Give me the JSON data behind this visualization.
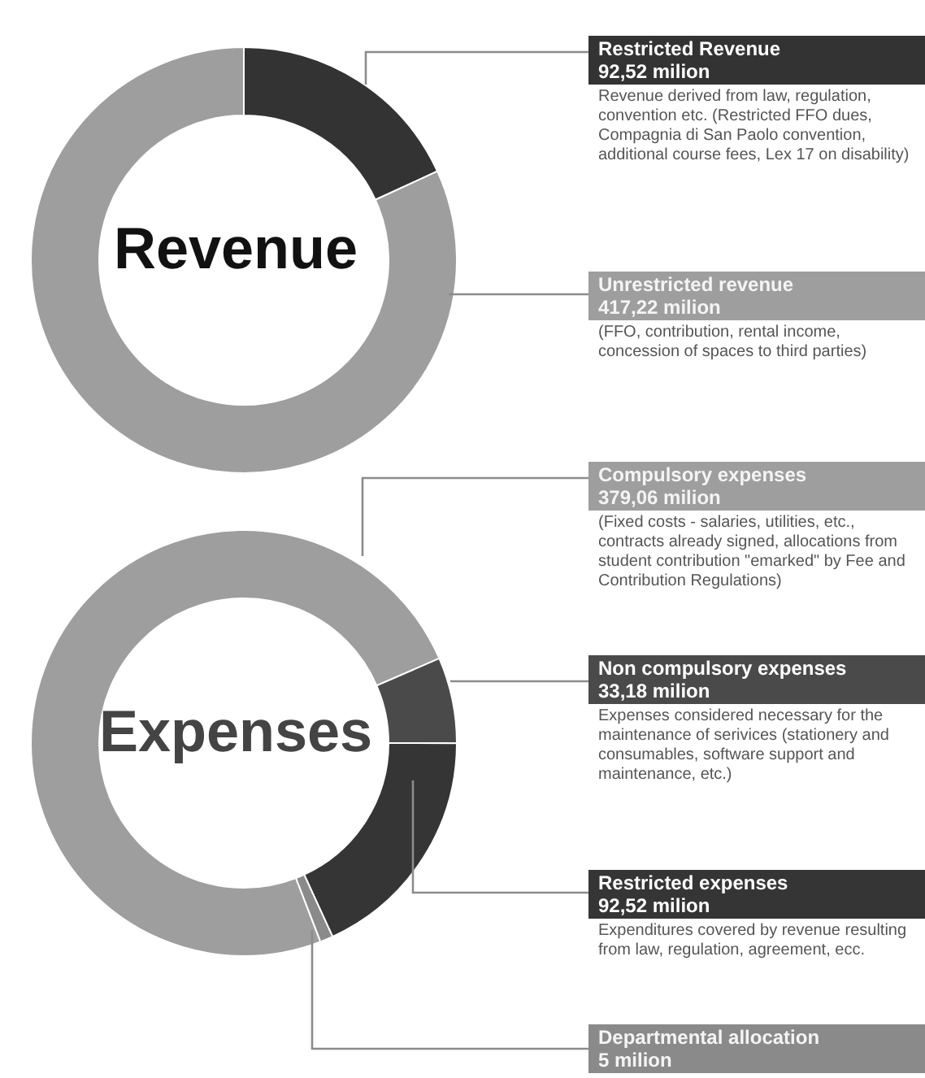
{
  "chart_data": [
    {
      "type": "donut",
      "title": "Revenue",
      "categories": [
        "Restricted Revenue",
        "Unrestricted revenue"
      ],
      "values": [
        92.52,
        417.22
      ],
      "colors": [
        "#333333",
        "#9e9e9e"
      ],
      "value_labels": [
        "92,52 milion",
        "417,22 milion"
      ],
      "annotations": [
        "Revenue derived from law, regulation, convention etc. (Restricted FFO dues,  Compagnia di San Paolo convention, additional course fees, Lex 17 on disability)",
        "(FFO, contribution, rental income, concession of spaces to third parties)"
      ]
    },
    {
      "type": "donut",
      "title": "Expenses",
      "categories": [
        "Compulsory expenses",
        "Non compulsory expenses",
        "Restricted expenses",
        "Departmental allocation"
      ],
      "values": [
        379.06,
        33.18,
        92.52,
        5
      ],
      "colors": [
        "#9e9e9e",
        "#4a4a4a",
        "#353535",
        "#8a8a8a"
      ],
      "value_labels": [
        "379,06 milion",
        "33,18 milion",
        "92,52 milion",
        "5 milion"
      ],
      "annotations": [
        "(Fixed costs - salaries, utilities, etc., contracts already signed, allocations from student contribution \"emarked\" by Fee and Contribution Regulations)",
        "Expenses considered necessary for the maintenance of  serivices (stationery and consumables, software support and maintenance, etc.)",
        "Expenditures covered by revenue resulting from law, regulation, agreement, ecc."
      ]
    }
  ]
}
